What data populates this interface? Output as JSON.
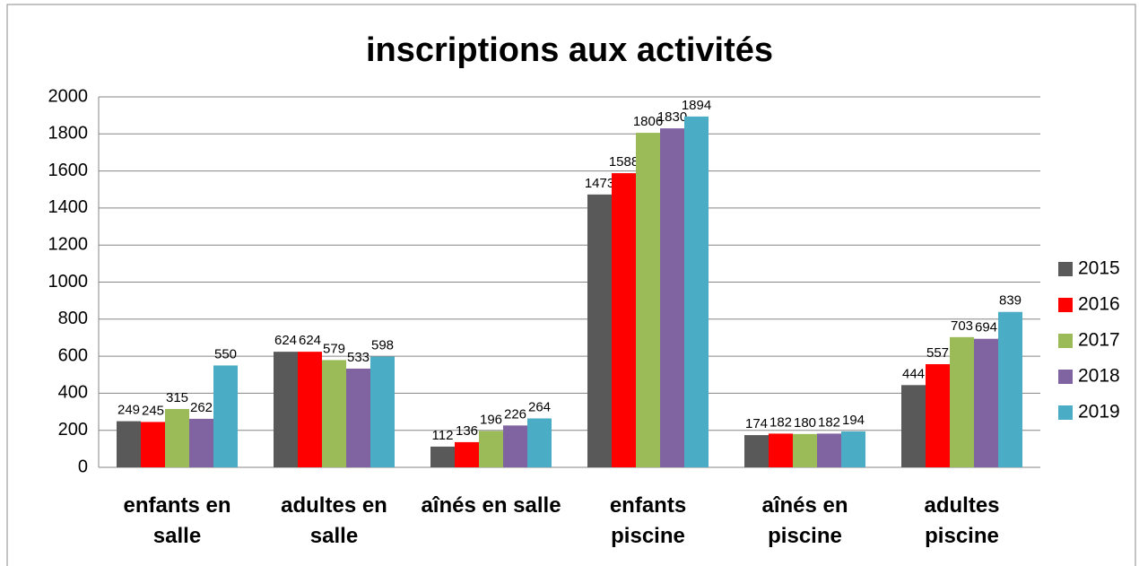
{
  "chart_data": {
    "type": "bar",
    "title": "inscriptions aux activités",
    "categories": [
      "enfants en salle",
      "adultes en salle",
      "aînés en salle",
      "enfants piscine",
      "aînés en piscine",
      "adultes piscine"
    ],
    "series": [
      {
        "name": "2015",
        "color": "#595959",
        "values": [
          249,
          624,
          112,
          1473,
          174,
          444
        ]
      },
      {
        "name": "2016",
        "color": "#ff0000",
        "values": [
          245,
          624,
          136,
          1588,
          182,
          557
        ]
      },
      {
        "name": "2017",
        "color": "#9bbb59",
        "values": [
          315,
          579,
          196,
          1806,
          180,
          703
        ]
      },
      {
        "name": "2018",
        "color": "#8064a2",
        "values": [
          262,
          533,
          226,
          1830,
          182,
          694
        ]
      },
      {
        "name": "2019",
        "color": "#4bacc6",
        "values": [
          550,
          598,
          264,
          1894,
          194,
          839
        ]
      }
    ],
    "ylim": [
      0,
      2000
    ],
    "yticks": [
      0,
      200,
      400,
      600,
      800,
      1000,
      1200,
      1400,
      1600,
      1800,
      2000
    ],
    "grid": true,
    "legend": "right"
  }
}
